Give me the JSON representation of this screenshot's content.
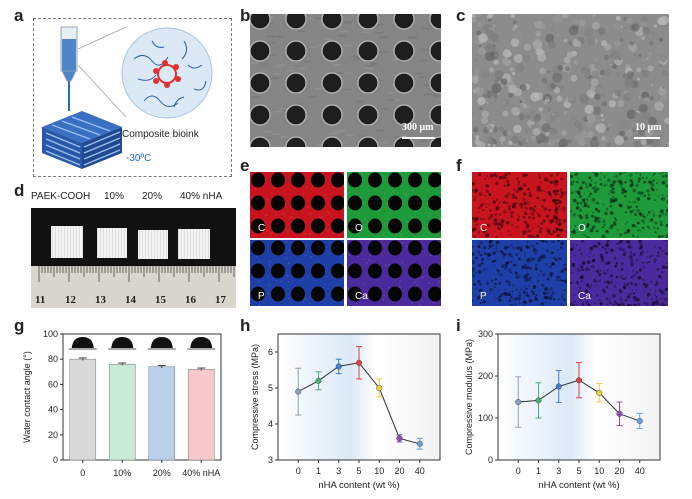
{
  "panels": {
    "a": {
      "letter": "a",
      "bioink_label": "Composite bioink",
      "temperature_label": "-30ºC"
    },
    "b": {
      "letter": "b",
      "scale_bar": "300 μm"
    },
    "c": {
      "letter": "c",
      "scale_bar": "10 μm"
    },
    "d": {
      "letter": "d",
      "sample_labels": [
        "PAEK-COOH",
        "10%",
        "20%",
        "40% nHA"
      ],
      "ruler_numbers": [
        "11",
        "12",
        "13",
        "14",
        "15",
        "16",
        "17"
      ]
    },
    "e": {
      "letter": "e",
      "elements": [
        "C",
        "O",
        "P",
        "Ca"
      ]
    },
    "f": {
      "letter": "f",
      "elements": [
        "C",
        "O",
        "P",
        "Ca"
      ]
    },
    "g": {
      "letter": "g"
    },
    "h": {
      "letter": "h"
    },
    "i": {
      "letter": "i"
    }
  },
  "colors": {
    "map_C": "#c8141e",
    "map_O": "#1f9a3a",
    "map_P": "#1f3fa8",
    "map_Ca": "#4a2a9c",
    "bar_0": "#d9d9d9",
    "bar_10": "#c9ead7",
    "bar_20": "#b9d0ea",
    "bar_40": "#f6c9cc"
  },
  "chart_data": [
    {
      "panel": "g",
      "type": "bar",
      "categories": [
        "0",
        "10%",
        "20%",
        "40% nHA"
      ],
      "values": [
        80,
        76,
        74,
        72
      ],
      "errors": [
        1,
        1,
        1,
        1
      ],
      "ylabel": "Water contact angle (°)",
      "xlabel": "",
      "ylim": [
        0,
        100
      ],
      "yticks": [
        0,
        20,
        40,
        60,
        80,
        100
      ]
    },
    {
      "panel": "h",
      "type": "line",
      "categories": [
        "0",
        "1",
        "3",
        "5",
        "10",
        "20",
        "40"
      ],
      "values": [
        4.9,
        5.2,
        5.6,
        5.7,
        5.0,
        3.6,
        3.45
      ],
      "errors": [
        0.65,
        0.25,
        0.2,
        0.45,
        0.25,
        0.1,
        0.15
      ],
      "point_colors": [
        "#8a9fc0",
        "#4caf75",
        "#3f7fd0",
        "#e2403a",
        "#e8d23a",
        "#8a4fb5",
        "#6fa0d8"
      ],
      "ylabel": "Compressive stress (MPa)",
      "xlabel": "nHA content (wt %)",
      "ylim": [
        3,
        6.5
      ],
      "yticks": [
        3,
        4,
        5,
        6
      ]
    },
    {
      "panel": "i",
      "type": "line",
      "categories": [
        "0",
        "1",
        "3",
        "5",
        "10",
        "20",
        "40"
      ],
      "values": [
        138,
        142,
        175,
        190,
        160,
        110,
        93
      ],
      "errors": [
        60,
        42,
        38,
        42,
        22,
        28,
        18
      ],
      "point_colors": [
        "#8a9fc0",
        "#4caf75",
        "#3f7fd0",
        "#e2403a",
        "#e8d23a",
        "#8a4fb5",
        "#6fa0d8"
      ],
      "ylabel": "Compressive modulus (MPa)",
      "xlabel": "nHA content (wt %)",
      "ylim": [
        0,
        300
      ],
      "yticks": [
        0,
        100,
        200,
        300
      ]
    }
  ]
}
